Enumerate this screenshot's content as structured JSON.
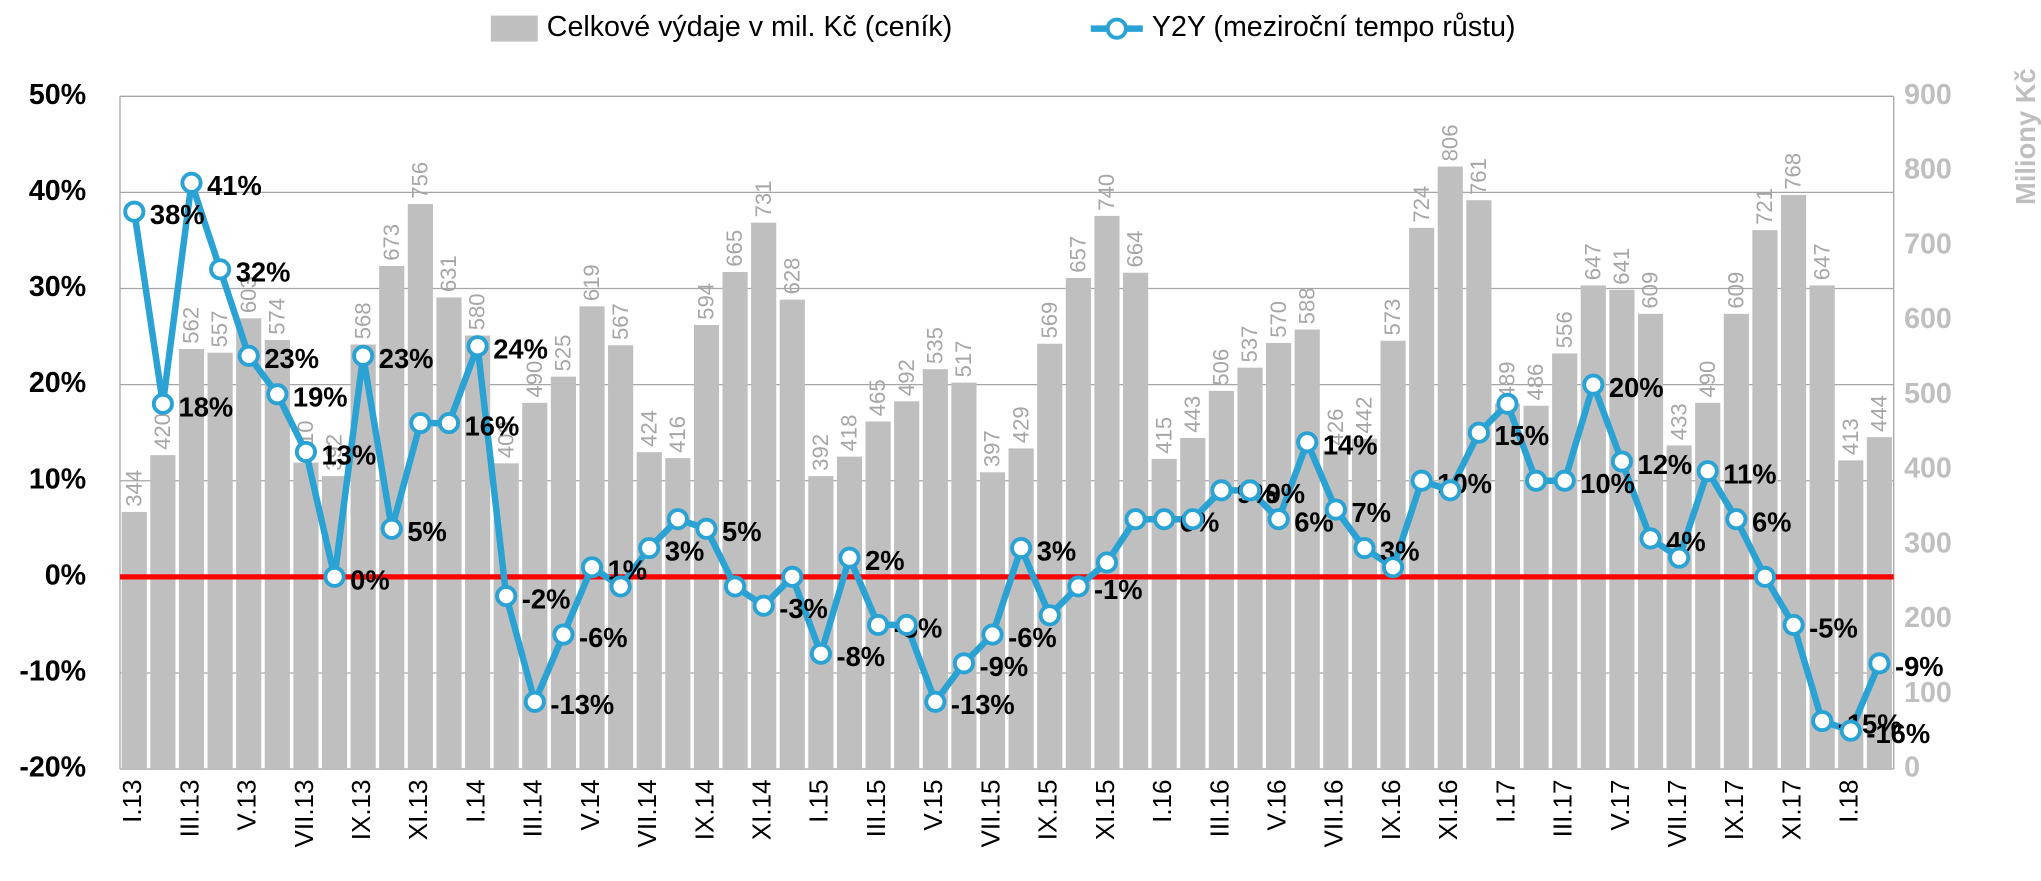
{
  "chart_data": {
    "type": "bar-line",
    "y2label": "Miliony Kč",
    "categories": [
      "I.13",
      null,
      "III.13",
      null,
      "V.13",
      null,
      "VII.13",
      null,
      "IX.13",
      null,
      "XI.13",
      null,
      "I.14",
      null,
      "III.14",
      null,
      "V.14",
      null,
      "VII.14",
      null,
      "IX.14",
      null,
      "XI.14",
      null,
      "I.15",
      null,
      "III.15",
      null,
      "V.15",
      null,
      "VII.15",
      null,
      "IX.15",
      null,
      "XI.15",
      null,
      "I.16",
      null,
      "III.16",
      null,
      "V.16",
      null,
      "VII.16",
      null,
      "IX.16",
      null,
      "XI.16",
      null,
      "I.17",
      null,
      "III.17",
      null,
      "V.17",
      null,
      "VII.17",
      null,
      "IX.17",
      null,
      "XI.17",
      null,
      "I.18",
      null
    ],
    "series": [
      {
        "name": "Celkové výdaje v mil. Kč (ceník)",
        "type": "bar",
        "axis": "y2",
        "color": "#bfbfbf",
        "values": [
          344,
          420,
          562,
          557,
          603,
          574,
          410,
          392,
          568,
          673,
          756,
          631,
          580,
          409,
          490,
          525,
          619,
          567,
          424,
          416,
          594,
          665,
          731,
          628,
          392,
          418,
          465,
          492,
          535,
          517,
          397,
          429,
          569,
          657,
          740,
          664,
          415,
          443,
          506,
          537,
          570,
          588,
          426,
          442,
          573,
          724,
          806,
          761,
          489,
          486,
          556,
          647,
          641,
          609,
          433,
          490,
          609,
          721,
          768,
          647,
          413,
          444
        ]
      },
      {
        "name": "Y2Y (meziroční tempo růstu)",
        "type": "line",
        "axis": "y",
        "color": "#2aa3d4",
        "values": [
          38,
          18,
          41,
          32,
          23,
          19,
          13,
          0,
          23,
          5,
          16,
          16,
          24,
          -2,
          -13,
          -6,
          1,
          -1,
          3,
          6,
          5,
          -1,
          -3,
          0,
          -8,
          2,
          -5,
          -5,
          -13,
          -9,
          -6,
          3,
          -4,
          -1,
          1.5,
          6,
          6,
          6,
          9,
          9,
          6,
          14,
          7,
          3,
          1,
          10,
          9,
          15,
          18,
          10,
          10,
          20,
          12,
          4,
          2,
          11,
          6,
          0,
          -5,
          -15,
          -16,
          -9
        ],
        "value_labels": [
          "38%",
          "18%",
          "41%",
          "32%",
          "23%",
          "19%",
          "13%",
          "0%",
          "23%",
          "5%",
          null,
          "16%",
          "24%",
          "-2%",
          "-13%",
          "-6%",
          "1%",
          null,
          "3%",
          null,
          "5%",
          null,
          "-3%",
          null,
          "-8%",
          "2%",
          "-5%",
          null,
          "-13%",
          "-9%",
          "-6%",
          "3%",
          null,
          "-1%",
          null,
          null,
          "6%",
          null,
          "9%",
          "9%",
          "6%",
          "14%",
          "7%",
          "3%",
          null,
          "10%",
          null,
          "15%",
          null,
          null,
          "10%",
          "20%",
          "12%",
          "4%",
          null,
          "11%",
          "6%",
          null,
          "-5%",
          "-15%",
          "-16%",
          "-9%"
        ]
      }
    ],
    "ylim": [
      -20,
      50
    ],
    "yticks": [
      {
        "value": -20,
        "label": "-20%"
      },
      {
        "value": -10,
        "label": "-10%"
      },
      {
        "value": 0,
        "label": "0%"
      },
      {
        "value": 10,
        "label": "10%"
      },
      {
        "value": 20,
        "label": "20%"
      },
      {
        "value": 30,
        "label": "30%"
      },
      {
        "value": 40,
        "label": "40%"
      },
      {
        "value": 50,
        "label": "50%"
      }
    ],
    "y2lim": [
      0,
      900
    ],
    "y2ticks": [
      0,
      100,
      200,
      300,
      400,
      500,
      600,
      700,
      800,
      900
    ],
    "grid": true,
    "zero_line_color": "#ff0000",
    "legend": "top"
  }
}
